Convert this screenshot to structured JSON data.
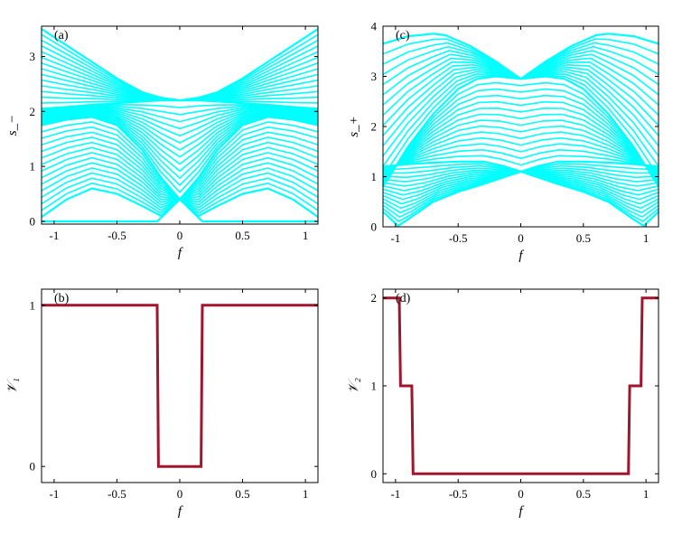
{
  "colors": {
    "band": "#00ffff",
    "winding": "#a0152e",
    "axis": "#000000"
  },
  "chart_data": [
    {
      "id": "a",
      "type": "line",
      "panel_label": "(a)",
      "xlabel": "f",
      "ylabel": "s_−",
      "xlim": [
        -1.1,
        1.1
      ],
      "ylim": [
        -0.05,
        3.55
      ],
      "xticks": [
        -1,
        -0.5,
        0,
        0.5,
        1
      ],
      "xtick_labels": [
        "-1",
        "-0.5",
        "0",
        "0.5",
        "1"
      ],
      "yticks": [
        0,
        1,
        2,
        3
      ],
      "ytick_labels": [
        "0",
        "1",
        "2",
        "3"
      ],
      "grid": false,
      "legend": "none",
      "description_of_series": "band of singular values s− vs f",
      "series": [
        {
          "x": [
            -1.1,
            -0.9,
            -0.7,
            -0.5,
            -0.3,
            -0.15,
            0,
            0.15,
            0.3,
            0.5,
            0.7,
            0.9,
            1.1
          ],
          "values": [
            3.5,
            3.2,
            2.9,
            2.6,
            2.35,
            2.25,
            2.2,
            2.25,
            2.35,
            2.6,
            2.9,
            3.2,
            3.5
          ]
        },
        {
          "x": [
            -1.1,
            -0.9,
            -0.7,
            -0.5,
            -0.3,
            -0.15,
            0,
            0.15,
            0.3,
            0.5,
            0.7,
            0.9,
            1.1
          ],
          "values": [
            2.05,
            2.08,
            2.12,
            2.15,
            2.18,
            2.2,
            2.2,
            2.2,
            2.18,
            2.15,
            2.12,
            2.08,
            2.05
          ]
        },
        {
          "x": [
            -1.1,
            -0.9,
            -0.7,
            -0.5,
            -0.3,
            -0.15,
            0,
            0.15,
            0.3,
            0.5,
            0.7,
            0.9,
            1.1
          ],
          "values": [
            1.75,
            1.85,
            1.9,
            1.75,
            1.3,
            0.8,
            0.4,
            0.8,
            1.3,
            1.75,
            1.9,
            1.85,
            1.75
          ]
        },
        {
          "x": [
            -1.1,
            -0.9,
            -0.7,
            -0.5,
            -0.3,
            -0.15,
            0,
            0.15,
            0.3,
            0.5,
            0.7,
            0.9,
            1.1
          ],
          "values": [
            0.08,
            0.4,
            0.6,
            0.5,
            0.28,
            0.1,
            0.4,
            0.1,
            0.28,
            0.5,
            0.6,
            0.4,
            0.08
          ]
        },
        {
          "x": [
            -1.1,
            -0.18,
            -0.17,
            0,
            0.17,
            0.18,
            1.1
          ],
          "values": [
            0.0,
            0.0,
            0.02,
            0.4,
            0.02,
            0.0,
            0.0
          ]
        }
      ]
    },
    {
      "id": "c",
      "type": "line",
      "panel_label": "(c)",
      "xlabel": "f",
      "ylabel": "s_+",
      "xlim": [
        -1.1,
        1.1
      ],
      "ylim": [
        0,
        4
      ],
      "xticks": [
        -1,
        -0.5,
        0,
        0.5,
        1
      ],
      "xtick_labels": [
        "-1",
        "-0.5",
        "0",
        "0.5",
        "1"
      ],
      "yticks": [
        0,
        1,
        2,
        3,
        4
      ],
      "ytick_labels": [
        "0",
        "1",
        "2",
        "3",
        "4"
      ],
      "grid": false,
      "legend": "none",
      "series": [
        {
          "x": [
            -1.1,
            -0.9,
            -0.7,
            -0.6,
            -0.4,
            -0.2,
            0,
            0.2,
            0.4,
            0.6,
            0.7,
            0.9,
            1.1
          ],
          "values": [
            3.65,
            3.8,
            3.85,
            3.82,
            3.6,
            3.3,
            2.95,
            3.3,
            3.6,
            3.82,
            3.85,
            3.8,
            3.65
          ]
        },
        {
          "x": [
            -1.1,
            -0.9,
            -0.7,
            -0.5,
            -0.35,
            -0.2,
            0,
            0.2,
            0.35,
            0.5,
            0.7,
            0.9,
            1.1
          ],
          "values": [
            0.8,
            1.6,
            2.25,
            2.75,
            2.95,
            3.0,
            2.95,
            3.0,
            2.95,
            2.75,
            2.25,
            1.6,
            0.8
          ]
        },
        {
          "x": [
            -1.1,
            -0.9,
            -0.7,
            -0.5,
            -0.3,
            -0.15,
            0,
            0.15,
            0.3,
            0.5,
            0.7,
            0.9,
            1.1
          ],
          "values": [
            1.2,
            1.25,
            1.28,
            1.3,
            1.3,
            1.22,
            1.1,
            1.22,
            1.3,
            1.3,
            1.28,
            1.25,
            1.2
          ]
        },
        {
          "x": [
            -1.1,
            -0.98,
            -0.9,
            -0.7,
            -0.5,
            -0.3,
            0,
            0.3,
            0.5,
            0.7,
            0.9,
            0.98,
            1.1
          ],
          "values": [
            0.3,
            0.02,
            0.15,
            0.5,
            0.7,
            0.85,
            1.1,
            0.85,
            0.7,
            0.5,
            0.15,
            0.02,
            0.3
          ]
        }
      ]
    },
    {
      "id": "b",
      "type": "line",
      "panel_label": "(b)",
      "xlabel": "f",
      "ylabel": "𝒱₁",
      "xlim": [
        -1.1,
        1.1
      ],
      "ylim": [
        -0.1,
        1.1
      ],
      "xticks": [
        -1,
        -0.5,
        0,
        0.5,
        1
      ],
      "xtick_labels": [
        "-1",
        "-0.5",
        "0",
        "0.5",
        "1"
      ],
      "yticks": [
        0,
        1
      ],
      "ytick_labels": [
        "0",
        "1"
      ],
      "grid": false,
      "legend": "none",
      "series": [
        {
          "x": [
            -1.1,
            -0.18,
            -0.17,
            0.17,
            0.18,
            1.1
          ],
          "values": [
            1,
            1,
            0,
            0,
            1,
            1
          ]
        }
      ]
    },
    {
      "id": "d",
      "type": "line",
      "panel_label": "(d)",
      "xlabel": "f",
      "ylabel": "𝒱₂",
      "xlim": [
        -1.1,
        1.1
      ],
      "ylim": [
        -0.1,
        2.1
      ],
      "xticks": [
        -1,
        -0.5,
        0,
        0.5,
        1
      ],
      "xtick_labels": [
        "-1",
        "-0.5",
        "0",
        "0.5",
        "1"
      ],
      "yticks": [
        0,
        1,
        2
      ],
      "ytick_labels": [
        "0",
        "1",
        "2"
      ],
      "grid": false,
      "legend": "none",
      "series": [
        {
          "x": [
            -1.1,
            -0.97,
            -0.96,
            -0.87,
            -0.86,
            0.86,
            0.87,
            0.96,
            0.97,
            1.1
          ],
          "values": [
            2,
            2,
            1,
            1,
            0,
            0,
            1,
            1,
            2,
            2
          ]
        }
      ]
    }
  ]
}
